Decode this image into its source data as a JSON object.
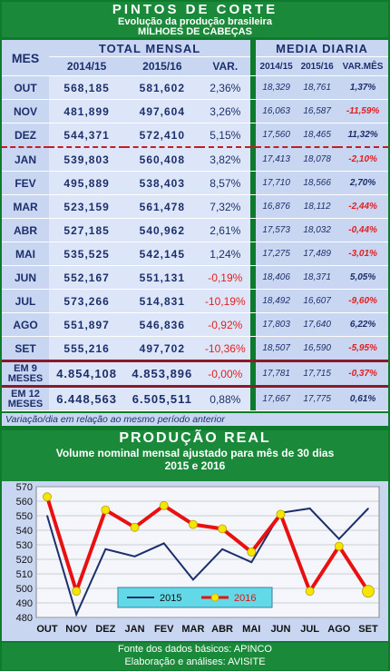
{
  "header": {
    "title": "PINTOS DE CORTE",
    "subtitle": "Evolução da produção brasileira",
    "unit": "MILHOES DE CABEÇAS"
  },
  "table": {
    "mes_label": "MES",
    "total_label": "TOTAL MENSAL",
    "media_label": "MEDIA DIARIA",
    "cols": {
      "y1": "2014/15",
      "y2": "2015/16",
      "var": "VAR.",
      "d1": "2014/15",
      "d2": "2015/16",
      "dvar": "VAR.MÊS"
    },
    "rows": [
      {
        "mes": "OUT",
        "y1": "568,185",
        "y2": "581,602",
        "var": "2,36%",
        "d1": "18,329",
        "d2": "18,761",
        "dvar": "1,37%"
      },
      {
        "mes": "NOV",
        "y1": "481,899",
        "y2": "497,604",
        "var": "3,26%",
        "d1": "16,063",
        "d2": "16,587",
        "dvar": "-11,59%"
      },
      {
        "mes": "DEZ",
        "y1": "544,371",
        "y2": "572,410",
        "var": "5,15%",
        "d1": "17,560",
        "d2": "18,465",
        "dvar": "11,32%"
      },
      {
        "mes": "JAN",
        "y1": "539,803",
        "y2": "560,408",
        "var": "3,82%",
        "d1": "17,413",
        "d2": "18,078",
        "dvar": "-2,10%"
      },
      {
        "mes": "FEV",
        "y1": "495,889",
        "y2": "538,403",
        "var": "8,57%",
        "d1": "17,710",
        "d2": "18,566",
        "dvar": "2,70%"
      },
      {
        "mes": "MAR",
        "y1": "523,159",
        "y2": "561,478",
        "var": "7,32%",
        "d1": "16,876",
        "d2": "18,112",
        "dvar": "-2,44%"
      },
      {
        "mes": "ABR",
        "y1": "527,185",
        "y2": "540,962",
        "var": "2,61%",
        "d1": "17,573",
        "d2": "18,032",
        "dvar": "-0,44%"
      },
      {
        "mes": "MAI",
        "y1": "535,525",
        "y2": "542,145",
        "var": "1,24%",
        "d1": "17,275",
        "d2": "17,489",
        "dvar": "-3,01%"
      },
      {
        "mes": "JUN",
        "y1": "552,167",
        "y2": "551,131",
        "var": "-0,19%",
        "d1": "18,406",
        "d2": "18,371",
        "dvar": "5,05%"
      },
      {
        "mes": "JUL",
        "y1": "573,266",
        "y2": "514,831",
        "var": "-10,19%",
        "d1": "18,492",
        "d2": "16,607",
        "dvar": "-9,60%"
      },
      {
        "mes": "AGO",
        "y1": "551,897",
        "y2": "546,836",
        "var": "-0,92%",
        "d1": "17,803",
        "d2": "17,640",
        "dvar": "6,22%"
      },
      {
        "mes": "SET",
        "y1": "555,216",
        "y2": "497,702",
        "var": "-10,36%",
        "d1": "18,507",
        "d2": "16,590",
        "dvar": "-5,95%"
      }
    ],
    "totals": [
      {
        "mes1": "EM 9",
        "mes2": "MESES",
        "y1": "4.854,108",
        "y2": "4.853,896",
        "var": "-0,00%",
        "d1": "17,781",
        "d2": "17,715",
        "dvar": "-0,37%"
      },
      {
        "mes1": "EM 12",
        "mes2": "MESES",
        "y1": "6.448,563",
        "y2": "6.505,511",
        "var": "0,88%",
        "d1": "17,667",
        "d2": "17,775",
        "dvar": "0,61%"
      }
    ],
    "note": "Variação/dia em relação ao mesmo período anterior"
  },
  "section": {
    "title": "PRODUÇÃO REAL",
    "subtitle": "Volume nominal mensal ajustado para mês de 30 dias",
    "years": "2015 e 2016"
  },
  "chart_data": {
    "type": "line",
    "categories": [
      "OUT",
      "NOV",
      "DEZ",
      "JAN",
      "FEV",
      "MAR",
      "ABR",
      "MAI",
      "JUN",
      "JUL",
      "AGO",
      "SET"
    ],
    "series": [
      {
        "name": "2015",
        "color": "#1c2f6b",
        "values": [
          550,
          482,
          527,
          522,
          531,
          506,
          527,
          518,
          552,
          555,
          534,
          555
        ]
      },
      {
        "name": "2016",
        "color": "#e81010",
        "marker": "#f5e600",
        "values": [
          563,
          498,
          554,
          542,
          557,
          544,
          541,
          525,
          551,
          498,
          529,
          498
        ]
      }
    ],
    "ylim": [
      480,
      570
    ],
    "yticks": [
      480,
      490,
      500,
      510,
      520,
      530,
      540,
      550,
      560,
      570
    ],
    "grid": true,
    "legend": "bottom-center"
  },
  "footer": {
    "line1": "Fonte dos dados básicos: APINCO",
    "line2": "Elaboração e análises: AVISITE"
  }
}
